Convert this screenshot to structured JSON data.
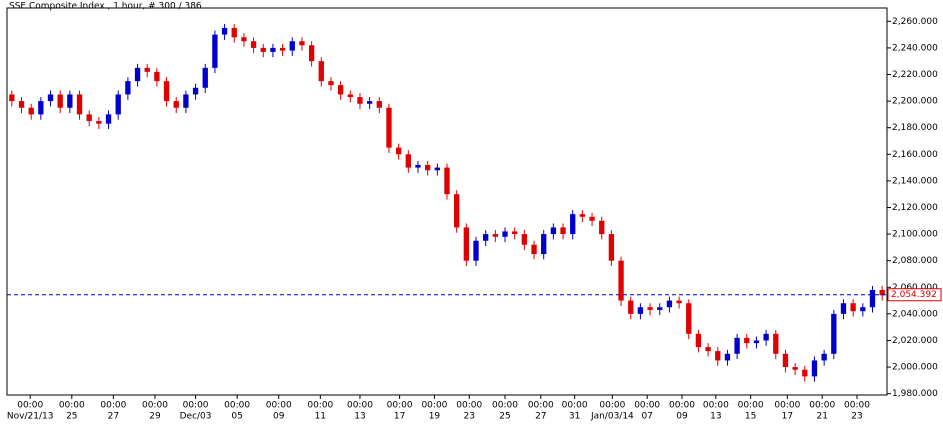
{
  "chart_data": {
    "type": "candlestick",
    "title": "SSE Composite Index , 1 hour, # 300 / 386",
    "up_color": "#0000cc",
    "down_color": "#e00000",
    "open": [
      2205,
      2200,
      2195,
      2190,
      2200,
      2205,
      2195,
      2205,
      2190,
      2185,
      2183,
      2190,
      2205,
      2215,
      2225,
      2222,
      2215,
      2200,
      2195,
      2205,
      2210,
      2225,
      2250,
      2255,
      2248,
      2245,
      2240,
      2237,
      2240,
      2238,
      2245,
      2242,
      2230,
      2215,
      2212,
      2205,
      2203,
      2198,
      2200,
      2195,
      2165,
      2160,
      2150,
      2152,
      2148,
      2150,
      2130,
      2105,
      2080,
      2095,
      2100,
      2098,
      2102,
      2100,
      2092,
      2085,
      2100,
      2105,
      2100,
      2115,
      2113,
      2110,
      2100,
      2080,
      2050,
      2040,
      2045,
      2043,
      2045,
      2050,
      2048,
      2025,
      2015,
      2012,
      2005,
      2010,
      2022,
      2018,
      2020,
      2025,
      2010,
      2000,
      1998,
      1993,
      2005,
      2010,
      2040,
      2048,
      2042,
      2045,
      2058
    ],
    "high": [
      2208,
      2203,
      2198,
      2203,
      2208,
      2208,
      2208,
      2208,
      2193,
      2188,
      2193,
      2208,
      2218,
      2228,
      2228,
      2225,
      2218,
      2203,
      2208,
      2213,
      2228,
      2253,
      2258,
      2258,
      2251,
      2248,
      2243,
      2243,
      2243,
      2248,
      2248,
      2245,
      2233,
      2218,
      2215,
      2208,
      2206,
      2203,
      2203,
      2198,
      2168,
      2163,
      2155,
      2155,
      2153,
      2153,
      2133,
      2108,
      2098,
      2103,
      2103,
      2105,
      2105,
      2103,
      2095,
      2103,
      2108,
      2108,
      2118,
      2118,
      2116,
      2113,
      2103,
      2083,
      2053,
      2048,
      2048,
      2048,
      2053,
      2053,
      2051,
      2028,
      2018,
      2015,
      2013,
      2025,
      2025,
      2023,
      2028,
      2028,
      2013,
      2003,
      2001,
      2008,
      2013,
      2043,
      2051,
      2051,
      2048,
      2061,
      2061
    ],
    "low": [
      2196,
      2191,
      2186,
      2186,
      2196,
      2191,
      2191,
      2186,
      2181,
      2179,
      2179,
      2186,
      2201,
      2211,
      2218,
      2211,
      2196,
      2191,
      2191,
      2201,
      2206,
      2221,
      2246,
      2244,
      2241,
      2236,
      2233,
      2233,
      2234,
      2234,
      2238,
      2226,
      2211,
      2208,
      2201,
      2199,
      2194,
      2194,
      2191,
      2161,
      2156,
      2146,
      2146,
      2144,
      2144,
      2126,
      2101,
      2076,
      2076,
      2091,
      2094,
      2094,
      2096,
      2088,
      2081,
      2081,
      2096,
      2096,
      2096,
      2109,
      2106,
      2096,
      2076,
      2046,
      2036,
      2036,
      2039,
      2039,
      2041,
      2044,
      2021,
      2011,
      2008,
      2001,
      2001,
      2006,
      2014,
      2014,
      2016,
      2006,
      1996,
      1994,
      1989,
      1989,
      2001,
      2006,
      2036,
      2038,
      2038,
      2041,
      2050
    ],
    "close": [
      2200,
      2195,
      2190,
      2200,
      2205,
      2195,
      2205,
      2190,
      2185,
      2183,
      2190,
      2205,
      2215,
      2225,
      2222,
      2215,
      2200,
      2195,
      2205,
      2210,
      2225,
      2250,
      2255,
      2248,
      2245,
      2240,
      2237,
      2240,
      2238,
      2245,
      2242,
      2230,
      2215,
      2212,
      2205,
      2203,
      2198,
      2200,
      2195,
      2165,
      2160,
      2150,
      2152,
      2148,
      2150,
      2130,
      2105,
      2080,
      2095,
      2100,
      2098,
      2102,
      2100,
      2092,
      2085,
      2100,
      2105,
      2100,
      2115,
      2113,
      2110,
      2100,
      2080,
      2050,
      2040,
      2045,
      2043,
      2045,
      2050,
      2048,
      2025,
      2015,
      2012,
      2005,
      2010,
      2022,
      2018,
      2020,
      2025,
      2010,
      2000,
      1998,
      1993,
      2005,
      2010,
      2040,
      2048,
      2042,
      2045,
      2058,
      2054
    ],
    "xlim": [
      -0.5,
      90.5
    ],
    "xticks": [
      {
        "value": 1.9,
        "time": "00:00",
        "label": "Nov/21/13"
      },
      {
        "value": 6.2,
        "time": "00:00",
        "label": "25"
      },
      {
        "value": 10.5,
        "time": "00:00",
        "label": "27"
      },
      {
        "value": 14.8,
        "time": "00:00",
        "label": "29"
      },
      {
        "value": 19.0,
        "time": "00:00",
        "label": "Dec/03"
      },
      {
        "value": 23.3,
        "time": "00:00",
        "label": "05"
      },
      {
        "value": 27.6,
        "time": "00:00",
        "label": "09"
      },
      {
        "value": 31.9,
        "time": "00:00",
        "label": "11"
      },
      {
        "value": 36.0,
        "time": "00:00",
        "label": "13"
      },
      {
        "value": 40.1,
        "time": "00:00",
        "label": "17"
      },
      {
        "value": 43.7,
        "time": "00:00",
        "label": "19"
      },
      {
        "value": 47.3,
        "time": "00:00",
        "label": "23"
      },
      {
        "value": 51.0,
        "time": "00:00",
        "label": "25"
      },
      {
        "value": 54.7,
        "time": "00:00",
        "label": "27"
      },
      {
        "value": 58.2,
        "time": "00:00",
        "label": "31"
      },
      {
        "value": 62.1,
        "time": "00:00",
        "label": "Jan/03/14"
      },
      {
        "value": 65.7,
        "time": "00:00",
        "label": "07"
      },
      {
        "value": 69.3,
        "time": "00:00",
        "label": "09"
      },
      {
        "value": 72.8,
        "time": "00:00",
        "label": "13"
      },
      {
        "value": 76.4,
        "time": "00:00",
        "label": "15"
      },
      {
        "value": 80.2,
        "time": "00:00",
        "label": "17"
      },
      {
        "value": 83.8,
        "time": "00:00",
        "label": "21"
      },
      {
        "value": 87.4,
        "time": "00:00",
        "label": "23"
      }
    ],
    "ylim": [
      1979,
      2270
    ],
    "yticks": [
      {
        "value": 1980,
        "label": "1,980.000"
      },
      {
        "value": 2000,
        "label": "2,000.000"
      },
      {
        "value": 2020,
        "label": "2,020.000"
      },
      {
        "value": 2040,
        "label": "2,040.000"
      },
      {
        "value": 2060,
        "label": "2,060.000"
      },
      {
        "value": 2080,
        "label": "2,080.000"
      },
      {
        "value": 2100,
        "label": "2,100.000"
      },
      {
        "value": 2120,
        "label": "2,120.000"
      },
      {
        "value": 2140,
        "label": "2,140.000"
      },
      {
        "value": 2160,
        "label": "2,160.000"
      },
      {
        "value": 2180,
        "label": "2,180.000"
      },
      {
        "value": 2200,
        "label": "2,200.000"
      },
      {
        "value": 2220,
        "label": "2,220.000"
      },
      {
        "value": 2240,
        "label": "2,240.000"
      },
      {
        "value": 2260,
        "label": "2,260.000"
      }
    ],
    "last_price": {
      "value": 2054.392,
      "label": "2,054.392"
    }
  }
}
